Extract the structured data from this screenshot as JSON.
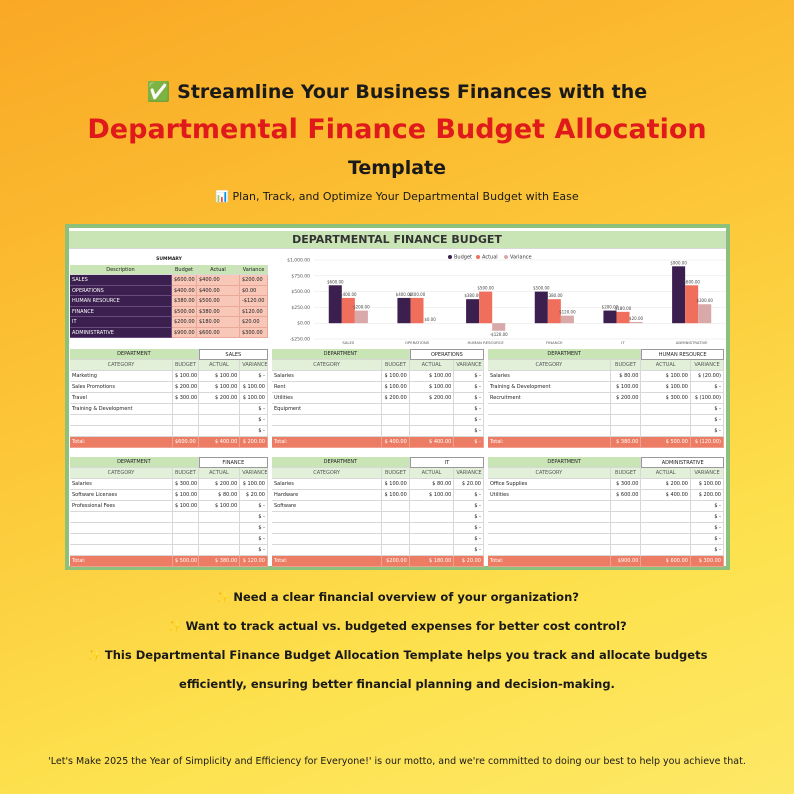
{
  "header": {
    "line1": "✅ Streamline Your Business Finances with the",
    "title": "Departmental Finance Budget Allocation",
    "line3": "Template",
    "subtitle": "📊 Plan, Track, and Optimize Your Departmental Budget with Ease"
  },
  "dashboard": {
    "title": "DEPARTMENTAL FINANCE BUDGET",
    "summary": {
      "title": "SUMMARY",
      "columns": [
        "Description",
        "Budget",
        "Actual",
        "Variance"
      ],
      "rows": [
        [
          "SALES",
          "$600.00",
          "$400.00",
          "$200.00"
        ],
        [
          "OPERATIONS",
          "$400.00",
          "$400.00",
          "$0.00"
        ],
        [
          "HUMAN RESOURCE",
          "$380.00",
          "$500.00",
          "-$120.00"
        ],
        [
          "FINANCE",
          "$500.00",
          "$380.00",
          "$120.00"
        ],
        [
          "IT",
          "$200.00",
          "$180.00",
          "$20.00"
        ],
        [
          "ADMINISTRATIVE",
          "$900.00",
          "$600.00",
          "$300.00"
        ]
      ]
    },
    "departments": [
      {
        "label": "DEPARTMENT",
        "name": "SALES",
        "columns": [
          "CATEGORY",
          "BUDGET",
          "ACTUAL",
          "VARIANCE"
        ],
        "rows": [
          [
            "Marketing",
            "$ 100.00",
            "$ 100.00",
            "$ -"
          ],
          [
            "Sales Promotions",
            "$ 200.00",
            "$ 100.00",
            "$ 100.00"
          ],
          [
            "Travel",
            "$ 300.00",
            "$ 200.00",
            "$ 100.00"
          ],
          [
            "Training & Development",
            null,
            null,
            "$ -"
          ],
          [
            null,
            null,
            null,
            "$ -"
          ],
          [
            null,
            null,
            null,
            "$ -"
          ]
        ],
        "total": [
          "Total:",
          "$600.00",
          "$ 400.00",
          "$ 200.00"
        ]
      },
      {
        "label": "DEPARTMENT",
        "name": "OPERATIONS",
        "columns": [
          "CATEGORY",
          "BUDGET",
          "ACTUAL",
          "VARIANCE"
        ],
        "rows": [
          [
            "Salaries",
            "$ 100.00",
            "$ 100.00",
            "$ -"
          ],
          [
            "Rent",
            "$ 100.00",
            "$ 100.00",
            "$ -"
          ],
          [
            "Utilities",
            "$ 200.00",
            "$ 200.00",
            "$ -"
          ],
          [
            "Equipment",
            null,
            null,
            "$ -"
          ],
          [
            null,
            null,
            null,
            "$ -"
          ],
          [
            null,
            null,
            null,
            "$ -"
          ]
        ],
        "total": [
          "Total:",
          "$ 400.00",
          "$ 400.00",
          "$ -"
        ]
      },
      {
        "label": "DEPARTMENT",
        "name": "HUMAN RESOURCE",
        "columns": [
          "CATEGORY",
          "BUDGET",
          "ACTUAL",
          "VARIANCE"
        ],
        "rows": [
          [
            "Salaries",
            "$ 80.00",
            "$ 100.00",
            "$ (20.00)"
          ],
          [
            "Training & Development",
            "$ 100.00",
            "$ 100.00",
            "$ -"
          ],
          [
            "Recruitment",
            "$ 200.00",
            "$ 300.00",
            "$ (100.00)"
          ],
          [
            null,
            null,
            null,
            "$ -"
          ],
          [
            null,
            null,
            null,
            "$ -"
          ],
          [
            null,
            null,
            null,
            "$ -"
          ]
        ],
        "total": [
          "Total:",
          "$ 380.00",
          "$ 500.00",
          "$ (120.00)"
        ]
      },
      {
        "label": "DEPARTMENT",
        "name": "FINANCE",
        "columns": [
          "CATEGORY",
          "BUDGET",
          "ACTUAL",
          "VARIANCE"
        ],
        "rows": [
          [
            "Salaries",
            "$ 300.00",
            "$ 200.00",
            "$ 100.00"
          ],
          [
            "Software Licenses",
            "$ 100.00",
            "$ 80.00",
            "$ 20.00"
          ],
          [
            "Professional Fees",
            "$ 100.00",
            "$ 100.00",
            "$ -"
          ],
          [
            null,
            null,
            null,
            "$ -"
          ],
          [
            null,
            null,
            null,
            "$ -"
          ],
          [
            null,
            null,
            null,
            "$ -"
          ],
          [
            null,
            null,
            null,
            "$ -"
          ]
        ],
        "total": [
          "Total:",
          "$ 500.00",
          "$ 380.00",
          "$ 120.00"
        ]
      },
      {
        "label": "DEPARTMENT",
        "name": "IT",
        "columns": [
          "CATEGORY",
          "BUDGET",
          "ACTUAL",
          "VARIANCE"
        ],
        "rows": [
          [
            "Salaries",
            "$ 100.00",
            "$ 80.00",
            "$ 20.00"
          ],
          [
            "Hardware",
            "$ 100.00",
            "$ 100.00",
            "$ -"
          ],
          [
            "Software",
            null,
            null,
            "$ -"
          ],
          [
            null,
            null,
            null,
            "$ -"
          ],
          [
            null,
            null,
            null,
            "$ -"
          ],
          [
            null,
            null,
            null,
            "$ -"
          ],
          [
            null,
            null,
            null,
            "$ -"
          ]
        ],
        "total": [
          "Total:",
          "$200.00",
          "$ 180.00",
          "$ 20.00"
        ]
      },
      {
        "label": "DEPARTMENT",
        "name": "ADMINISTRATIVE",
        "columns": [
          "CATEGORY",
          "BUDGET",
          "ACTUAL",
          "VARIANCE"
        ],
        "rows": [
          [
            "Office Supplies",
            "$ 300.00",
            "$ 200.00",
            "$ 100.00"
          ],
          [
            "Utilities",
            "$ 600.00",
            "$ 400.00",
            "$ 200.00"
          ],
          [
            null,
            null,
            null,
            "$ -"
          ],
          [
            null,
            null,
            null,
            "$ -"
          ],
          [
            null,
            null,
            null,
            "$ -"
          ],
          [
            null,
            null,
            null,
            "$ -"
          ],
          [
            null,
            null,
            null,
            "$ -"
          ]
        ],
        "total": [
          "Total:",
          "$900.00",
          "$ 600.00",
          "$ 300.00"
        ]
      }
    ]
  },
  "chart_data": {
    "type": "bar",
    "categories": [
      "SALES",
      "OPERATIONS",
      "HUMAN RESOURCE",
      "FINANCE",
      "IT",
      "ADMINISTRATIVE"
    ],
    "series": [
      {
        "name": "Budget",
        "color": "#3b1f4e",
        "values": [
          600,
          400,
          380,
          500,
          200,
          900
        ],
        "value_labels": [
          "$600.00",
          "$400.00",
          "$380.00",
          "$500.00",
          "$200.00",
          "$900.00"
        ]
      },
      {
        "name": "Actual",
        "color": "#ef6f5c",
        "values": [
          400,
          400,
          500,
          380,
          180,
          600
        ],
        "value_labels": [
          "$400.00",
          "$400.00",
          "$500.00",
          "$380.00",
          "$180.00",
          "$600.00"
        ]
      },
      {
        "name": "Variance",
        "color": "#d9a9a9",
        "values": [
          200,
          0,
          -120,
          120,
          20,
          300
        ],
        "value_labels": [
          "$200.00",
          "$0.00",
          "-$120.00",
          "$120.00",
          "$20.00",
          "$300.00"
        ]
      }
    ],
    "ylim": [
      -250,
      1000
    ],
    "yticks": [
      {
        "value": -250,
        "label": "-$250.00"
      },
      {
        "value": 0,
        "label": "$0.00"
      },
      {
        "value": 250,
        "label": "$250.00"
      },
      {
        "value": 500,
        "label": "$500.00"
      },
      {
        "value": 750,
        "label": "$750.00"
      },
      {
        "value": 1000,
        "label": "$1,000.00"
      }
    ],
    "legend": "top"
  },
  "bullets": [
    "✨ Need a clear financial overview of your organization?",
    "✨ Want to track actual vs. budgeted expenses for better cost control?",
    "✨ This Departmental Finance Budget Allocation Template helps you track and allocate budgets",
    "efficiently, ensuring better financial planning and decision-making."
  ],
  "footer": "'Let's Make 2025 the Year of Simplicity and Efficiency for Everyone!' is our motto, and we're committed to doing our best to help you achieve that."
}
